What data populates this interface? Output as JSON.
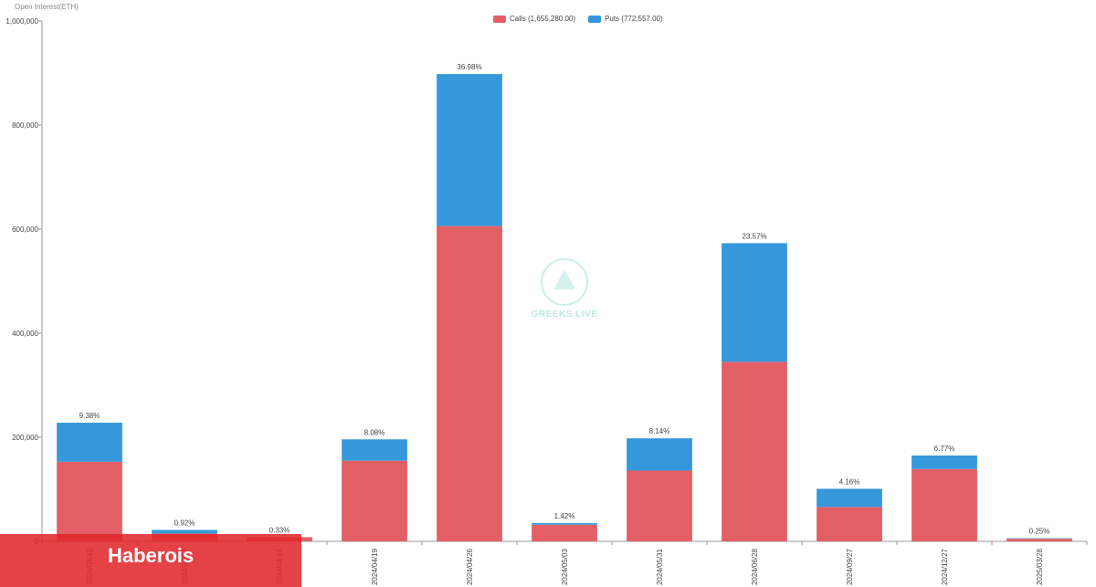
{
  "axis_title": "Open Interest(ETH)",
  "legend": {
    "calls_label": "Calls (1,655,280.00)",
    "puts_label": "Puts (772,557.00)"
  },
  "colors": {
    "calls": "#e35f66",
    "puts": "#3598db"
  },
  "watermark": {
    "text": "GREEKS.LIVE",
    "icon": "greeks-live-logo"
  },
  "banner": {
    "text": "Haberois"
  },
  "chart_data": {
    "type": "bar",
    "stacked": true,
    "categories": [
      "2024/04/12",
      "2024/04/13",
      "2024/04/14",
      "2024/04/19",
      "2024/04/26",
      "2024/05/03",
      "2024/05/31",
      "2024/06/28",
      "2024/09/27",
      "2024/12/27",
      "2025/03/28"
    ],
    "series": [
      {
        "name": "Calls",
        "values": [
          153000,
          15000,
          8000,
          155000,
          606000,
          32000,
          136000,
          345000,
          66000,
          139000,
          5000
        ]
      },
      {
        "name": "Puts",
        "values": [
          75000,
          7000,
          0,
          41000,
          292000,
          3000,
          62000,
          228000,
          35000,
          26000,
          1000
        ]
      }
    ],
    "data_labels": [
      "9.38%",
      "0.92%",
      "0.33%",
      "8.08%",
      "36.98%",
      "1.42%",
      "8.14%",
      "23.57%",
      "4.16%",
      "6.77%",
      "0.25%"
    ],
    "y_ticks": [
      "0",
      "200,000",
      "400,000",
      "600,000",
      "800,000",
      "1,000,000"
    ],
    "ylim": [
      0,
      1000000
    ],
    "grid": false,
    "legend_position": "top-center"
  }
}
